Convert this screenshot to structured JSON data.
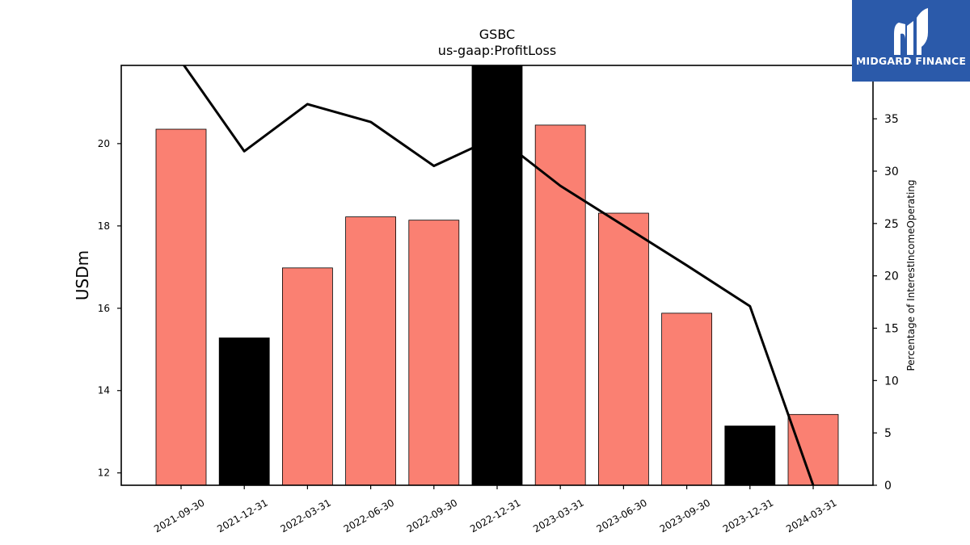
{
  "chart_data": {
    "type": "bar",
    "title": "GSBC",
    "subtitle": "us-gaap:ProfitLoss",
    "ylabel": "USDm",
    "y2label": "Percentage of InterestIncomeOperating",
    "ylim": [
      11.7,
      21.9
    ],
    "y2lim": [
      0,
      40.1
    ],
    "yticks": [
      12,
      14,
      16,
      18,
      20
    ],
    "y2ticks": [
      0,
      5,
      10,
      15,
      20,
      25,
      30,
      35
    ],
    "categories": [
      "2021-09-30",
      "2021-12-31",
      "2022-03-31",
      "2022-06-30",
      "2022-09-30",
      "2022-12-31",
      "2023-03-31",
      "2023-06-30",
      "2023-09-30",
      "2023-12-31",
      "2024-03-31"
    ],
    "values": [
      20.35,
      15.28,
      16.98,
      18.22,
      18.14,
      21.9,
      20.45,
      18.31,
      15.88,
      13.14,
      13.42
    ],
    "bar_colors": [
      "#fa8072",
      "#000000",
      "#fa8072",
      "#fa8072",
      "#fa8072",
      "#000000",
      "#fa8072",
      "#fa8072",
      "#fa8072",
      "#000000",
      "#fa8072"
    ],
    "line_values": [
      40.5,
      31.9,
      36.4,
      34.7,
      30.5,
      33.3,
      28.6,
      24.8,
      21.0,
      17.1,
      0.0
    ],
    "line_color": "#000000",
    "grid": false
  },
  "logo": {
    "text": "MIDGARD FINANCE",
    "background": "#2b5aaa"
  }
}
